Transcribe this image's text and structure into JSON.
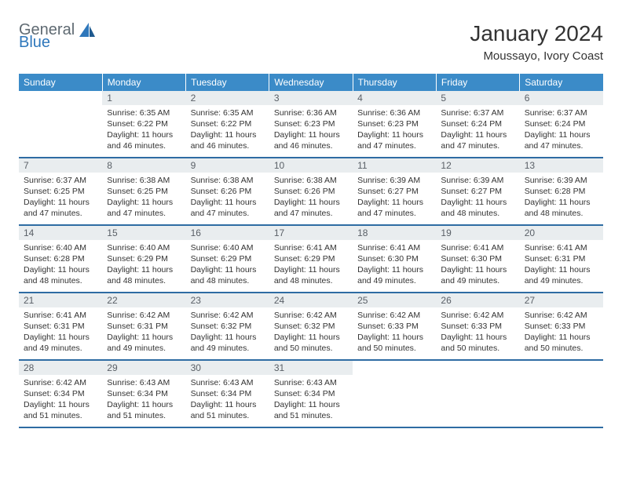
{
  "logo": {
    "line1": "General",
    "line2": "Blue"
  },
  "title": "January 2024",
  "subtitle": "Moussayo, Ivory Coast",
  "colors": {
    "header_bg": "#3b8bc8",
    "header_text": "#ffffff",
    "daynum_bg": "#e9edef",
    "daynum_text": "#5a6067",
    "body_text": "#333333",
    "row_border": "#2e6ca3",
    "logo_gray": "#5f6a72",
    "logo_blue": "#2e77bb"
  },
  "weekdays": [
    "Sunday",
    "Monday",
    "Tuesday",
    "Wednesday",
    "Thursday",
    "Friday",
    "Saturday"
  ],
  "days": [
    {
      "n": 1,
      "sr": "6:35 AM",
      "ss": "6:22 PM",
      "dl": "11 hours and 46 minutes."
    },
    {
      "n": 2,
      "sr": "6:35 AM",
      "ss": "6:22 PM",
      "dl": "11 hours and 46 minutes."
    },
    {
      "n": 3,
      "sr": "6:36 AM",
      "ss": "6:23 PM",
      "dl": "11 hours and 46 minutes."
    },
    {
      "n": 4,
      "sr": "6:36 AM",
      "ss": "6:23 PM",
      "dl": "11 hours and 47 minutes."
    },
    {
      "n": 5,
      "sr": "6:37 AM",
      "ss": "6:24 PM",
      "dl": "11 hours and 47 minutes."
    },
    {
      "n": 6,
      "sr": "6:37 AM",
      "ss": "6:24 PM",
      "dl": "11 hours and 47 minutes."
    },
    {
      "n": 7,
      "sr": "6:37 AM",
      "ss": "6:25 PM",
      "dl": "11 hours and 47 minutes."
    },
    {
      "n": 8,
      "sr": "6:38 AM",
      "ss": "6:25 PM",
      "dl": "11 hours and 47 minutes."
    },
    {
      "n": 9,
      "sr": "6:38 AM",
      "ss": "6:26 PM",
      "dl": "11 hours and 47 minutes."
    },
    {
      "n": 10,
      "sr": "6:38 AM",
      "ss": "6:26 PM",
      "dl": "11 hours and 47 minutes."
    },
    {
      "n": 11,
      "sr": "6:39 AM",
      "ss": "6:27 PM",
      "dl": "11 hours and 47 minutes."
    },
    {
      "n": 12,
      "sr": "6:39 AM",
      "ss": "6:27 PM",
      "dl": "11 hours and 48 minutes."
    },
    {
      "n": 13,
      "sr": "6:39 AM",
      "ss": "6:28 PM",
      "dl": "11 hours and 48 minutes."
    },
    {
      "n": 14,
      "sr": "6:40 AM",
      "ss": "6:28 PM",
      "dl": "11 hours and 48 minutes."
    },
    {
      "n": 15,
      "sr": "6:40 AM",
      "ss": "6:29 PM",
      "dl": "11 hours and 48 minutes."
    },
    {
      "n": 16,
      "sr": "6:40 AM",
      "ss": "6:29 PM",
      "dl": "11 hours and 48 minutes."
    },
    {
      "n": 17,
      "sr": "6:41 AM",
      "ss": "6:29 PM",
      "dl": "11 hours and 48 minutes."
    },
    {
      "n": 18,
      "sr": "6:41 AM",
      "ss": "6:30 PM",
      "dl": "11 hours and 49 minutes."
    },
    {
      "n": 19,
      "sr": "6:41 AM",
      "ss": "6:30 PM",
      "dl": "11 hours and 49 minutes."
    },
    {
      "n": 20,
      "sr": "6:41 AM",
      "ss": "6:31 PM",
      "dl": "11 hours and 49 minutes."
    },
    {
      "n": 21,
      "sr": "6:41 AM",
      "ss": "6:31 PM",
      "dl": "11 hours and 49 minutes."
    },
    {
      "n": 22,
      "sr": "6:42 AM",
      "ss": "6:31 PM",
      "dl": "11 hours and 49 minutes."
    },
    {
      "n": 23,
      "sr": "6:42 AM",
      "ss": "6:32 PM",
      "dl": "11 hours and 49 minutes."
    },
    {
      "n": 24,
      "sr": "6:42 AM",
      "ss": "6:32 PM",
      "dl": "11 hours and 50 minutes."
    },
    {
      "n": 25,
      "sr": "6:42 AM",
      "ss": "6:33 PM",
      "dl": "11 hours and 50 minutes."
    },
    {
      "n": 26,
      "sr": "6:42 AM",
      "ss": "6:33 PM",
      "dl": "11 hours and 50 minutes."
    },
    {
      "n": 27,
      "sr": "6:42 AM",
      "ss": "6:33 PM",
      "dl": "11 hours and 50 minutes."
    },
    {
      "n": 28,
      "sr": "6:42 AM",
      "ss": "6:34 PM",
      "dl": "11 hours and 51 minutes."
    },
    {
      "n": 29,
      "sr": "6:43 AM",
      "ss": "6:34 PM",
      "dl": "11 hours and 51 minutes."
    },
    {
      "n": 30,
      "sr": "6:43 AM",
      "ss": "6:34 PM",
      "dl": "11 hours and 51 minutes."
    },
    {
      "n": 31,
      "sr": "6:43 AM",
      "ss": "6:34 PM",
      "dl": "11 hours and 51 minutes."
    }
  ],
  "start_weekday": 1,
  "labels": {
    "sunrise": "Sunrise:",
    "sunset": "Sunset:",
    "daylight": "Daylight:"
  }
}
